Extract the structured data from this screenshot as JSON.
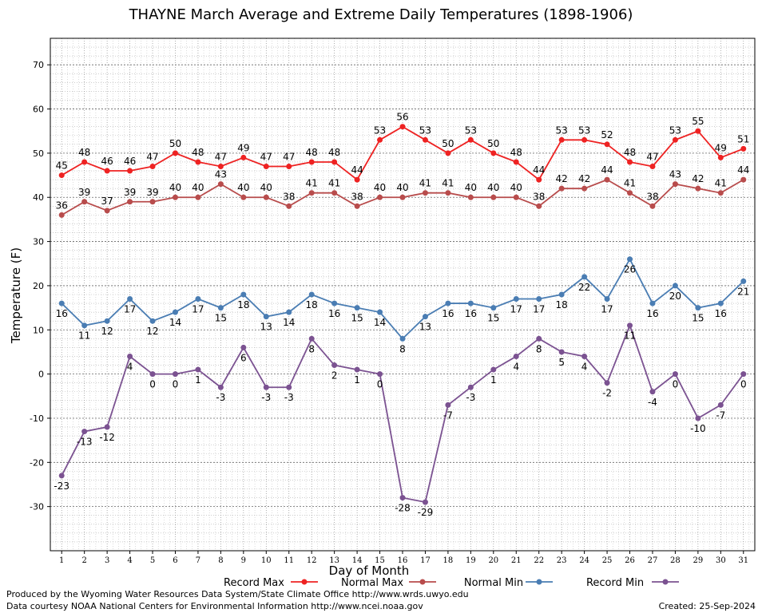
{
  "chart_data": {
    "type": "line",
    "title": "THAYNE March Average and Extreme Daily Temperatures (1898-1906)",
    "xlabel": "Day of Month",
    "ylabel": "Temperature (F)",
    "x": [
      1,
      2,
      3,
      4,
      5,
      6,
      7,
      8,
      9,
      10,
      11,
      12,
      13,
      14,
      15,
      16,
      17,
      18,
      19,
      20,
      21,
      22,
      23,
      24,
      25,
      26,
      27,
      28,
      29,
      30,
      31
    ],
    "ylim": [
      -40,
      76
    ],
    "yticks": [
      -30,
      -20,
      -10,
      0,
      10,
      20,
      30,
      40,
      50,
      60,
      70
    ],
    "grid": true,
    "legend_position": "bottom",
    "series": [
      {
        "name": "Record Max",
        "color": "#ee2222",
        "label_pos": "above",
        "values": [
          45,
          48,
          46,
          46,
          47,
          50,
          48,
          47,
          49,
          47,
          47,
          48,
          48,
          44,
          53,
          56,
          53,
          50,
          53,
          50,
          48,
          44,
          53,
          53,
          52,
          48,
          47,
          53,
          55,
          49,
          51
        ]
      },
      {
        "name": "Normal Max",
        "color": "#b84c4c",
        "label_pos": "above",
        "values": [
          36,
          39,
          37,
          39,
          39,
          40,
          40,
          43,
          40,
          40,
          38,
          41,
          41,
          38,
          40,
          40,
          41,
          41,
          40,
          40,
          40,
          38,
          42,
          42,
          44,
          41,
          38,
          43,
          42,
          41,
          44
        ]
      },
      {
        "name": "Normal Min",
        "color": "#4a7db3",
        "label_pos": "below",
        "values": [
          16,
          11,
          12,
          17,
          12,
          14,
          17,
          15,
          18,
          13,
          14,
          18,
          16,
          15,
          14,
          8,
          13,
          16,
          16,
          15,
          17,
          17,
          18,
          22,
          17,
          26,
          16,
          20,
          15,
          16,
          21
        ]
      },
      {
        "name": "Record Min",
        "color": "#7b5291",
        "label_pos": "below",
        "values": [
          -23,
          -13,
          -12,
          4,
          0,
          0,
          1,
          -3,
          6,
          -3,
          -3,
          8,
          2,
          1,
          0,
          -28,
          -29,
          -7,
          -3,
          1,
          4,
          8,
          5,
          4,
          -2,
          11,
          -4,
          0,
          -10,
          -7,
          0
        ]
      }
    ]
  },
  "footer": {
    "credit1": "Produced by the Wyoming Water Resources Data System/State Climate Office http://www.wrds.uwyo.edu",
    "credit2": "Data courtesy NOAA National Centers for Environmental Information http://www.ncei.noaa.gov",
    "created": "Created:  25-Sep-2024"
  }
}
